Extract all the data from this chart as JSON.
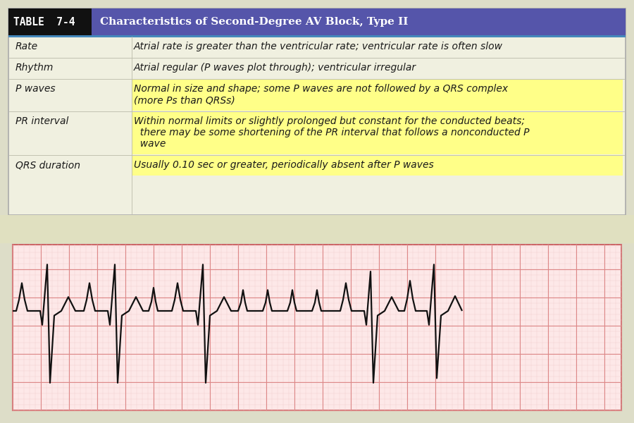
{
  "title_bg_color": "#5555aa",
  "title_black_bg": "#111111",
  "title_text": "TABLE 7-4",
  "title_subtitle": "Characteristics of Second-Degree AV Block, Type II",
  "table_bg": "#f0f0e0",
  "table_bg_light": "#eeeedd",
  "highlight_yellow": "#ffff88",
  "row_data": [
    {
      "label": "Rate",
      "value": "Atrial rate is greater than the ventricular rate; ventricular rate is often slow",
      "highlight": false,
      "nlines": 1
    },
    {
      "label": "Rhythm",
      "value": "Atrial regular (P waves plot through); ventricular irregular",
      "highlight": false,
      "nlines": 1
    },
    {
      "label": "P waves",
      "value": "Normal in size and shape; some P waves are not followed by a QRS complex\n(more Ps than QRSs)",
      "highlight": true,
      "nlines": 2
    },
    {
      "label": "PR interval",
      "value": "Within normal limits or slightly prolonged but constant for the conducted beats;\n  there may be some shortening of the PR interval that follows a nonconducted P\n  wave",
      "highlight": true,
      "nlines": 3
    },
    {
      "label": "QRS duration",
      "value": "Usually 0.10 sec or greater, periodically absent after P waves",
      "highlight": true,
      "nlines": 1
    }
  ],
  "ecg_bg": "#fde8e8",
  "ecg_grid_major_color": "#dd8888",
  "ecg_grid_minor_color": "#f2cccc",
  "ecg_line_color": "#111111",
  "outer_bg": "#ddddc8",
  "separator_color": "#4488bb",
  "watermark_color": "#e0e0c0"
}
